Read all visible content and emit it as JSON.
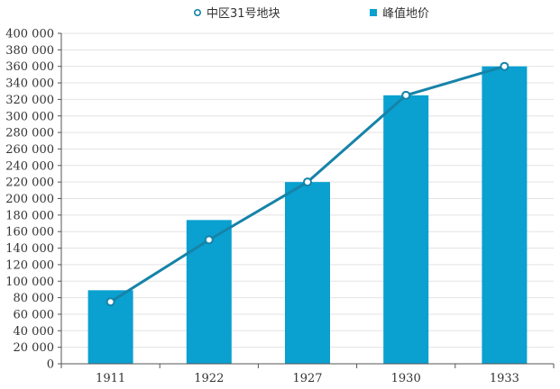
{
  "chart_data": {
    "type": "bar",
    "categories": [
      "1911",
      "1922",
      "1927",
      "1930",
      "1933"
    ],
    "series": [
      {
        "name": "峰值地价",
        "type": "bar",
        "color": "#0aa0d0",
        "values": [
          89000,
          174000,
          220000,
          325000,
          360000
        ]
      },
      {
        "name": "中区31号地块",
        "type": "line",
        "color": "#1683a8",
        "values": [
          75000,
          150000,
          220000,
          325000,
          360000
        ]
      }
    ],
    "ylim": [
      0,
      400000
    ],
    "yticks": [
      0,
      20000,
      40000,
      60000,
      80000,
      100000,
      120000,
      140000,
      160000,
      180000,
      200000,
      220000,
      240000,
      260000,
      280000,
      300000,
      320000,
      340000,
      360000,
      380000,
      400000
    ],
    "ytick_labels": [
      "0",
      "20 000",
      "40 000",
      "60 000",
      "80 000",
      "100 000",
      "120 000",
      "140 000",
      "160 000",
      "180 000",
      "200 000",
      "220 000",
      "240 000",
      "260 000",
      "280 000",
      "300 000",
      "320 000",
      "340 000",
      "360 000",
      "380 000",
      "400 000"
    ],
    "grid": true,
    "legend": {
      "position": "top",
      "items": [
        {
          "label": "中区31号地块",
          "marker": "circle-outline"
        },
        {
          "label": "峰值地价",
          "marker": "square"
        }
      ]
    },
    "title": "",
    "xlabel": "",
    "ylabel": ""
  }
}
